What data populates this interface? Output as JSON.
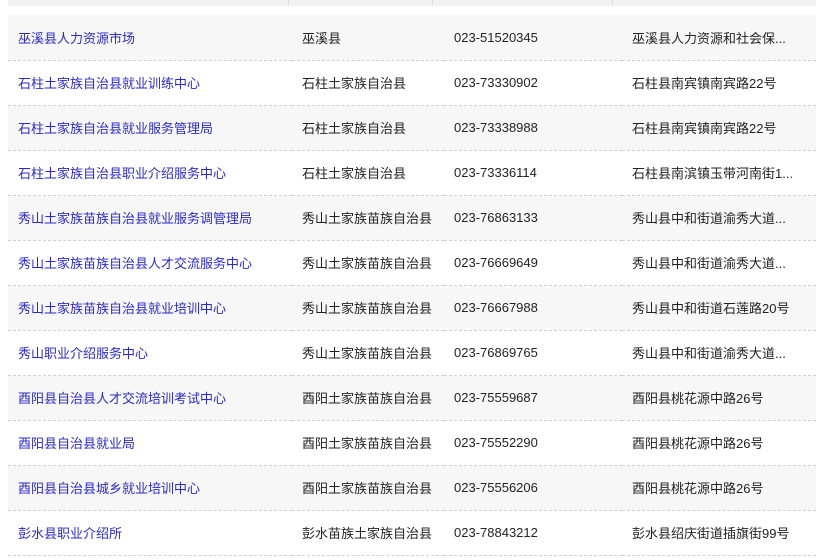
{
  "rows": [
    {
      "name": "巫溪县人力资源市场",
      "county": "巫溪县",
      "phone": "023-51520345",
      "address": "巫溪县人力资源和社会保..."
    },
    {
      "name": "石柱土家族自治县就业训练中心",
      "county": "石柱土家族自治县",
      "phone": "023-73330902",
      "address": "石柱县南宾镇南宾路22号"
    },
    {
      "name": "石柱土家族自治县就业服务管理局",
      "county": "石柱土家族自治县",
      "phone": "023-73338988",
      "address": "石柱县南宾镇南宾路22号"
    },
    {
      "name": "石柱土家族自治县职业介绍服务中心",
      "county": "石柱土家族自治县",
      "phone": "023-73336114",
      "address": "石柱县南滨镇玉带河南街1..."
    },
    {
      "name": "秀山土家族苗族自治县就业服务调管理局",
      "county": "秀山土家族苗族自治县",
      "phone": "023-76863133",
      "address": "秀山县中和街道渝秀大道..."
    },
    {
      "name": "秀山土家族苗族自治县人才交流服务中心",
      "county": "秀山土家族苗族自治县",
      "phone": "023-76669649",
      "address": "秀山县中和街道渝秀大道..."
    },
    {
      "name": "秀山土家族苗族自治县就业培训中心",
      "county": "秀山土家族苗族自治县",
      "phone": "023-76667988",
      "address": "秀山县中和街道石莲路20号"
    },
    {
      "name": "秀山职业介绍服务中心",
      "county": "秀山土家族苗族自治县",
      "phone": "023-76869765",
      "address": "秀山县中和街道渝秀大道..."
    },
    {
      "name": "酉阳县自治县人才交流培训考试中心",
      "county": "酉阳土家族苗族自治县",
      "phone": "023-75559687",
      "address": "酉阳县桃花源中路26号"
    },
    {
      "name": "酉阳县自治县就业局",
      "county": "酉阳土家族苗族自治县",
      "phone": "023-75552290",
      "address": "酉阳县桃花源中路26号"
    },
    {
      "name": "酉阳县自治县城乡就业培训中心",
      "county": "酉阳土家族苗族自治县",
      "phone": "023-75556206",
      "address": "酉阳县桃花源中路26号"
    },
    {
      "name": "彭水县职业介绍所",
      "county": "彭水苗族土家族自治县",
      "phone": "023-78843212",
      "address": "彭水县绍庆街道插旗街99号"
    }
  ],
  "colors": {
    "link": "#2a2acc",
    "row_alt": "#f7f7f7"
  }
}
